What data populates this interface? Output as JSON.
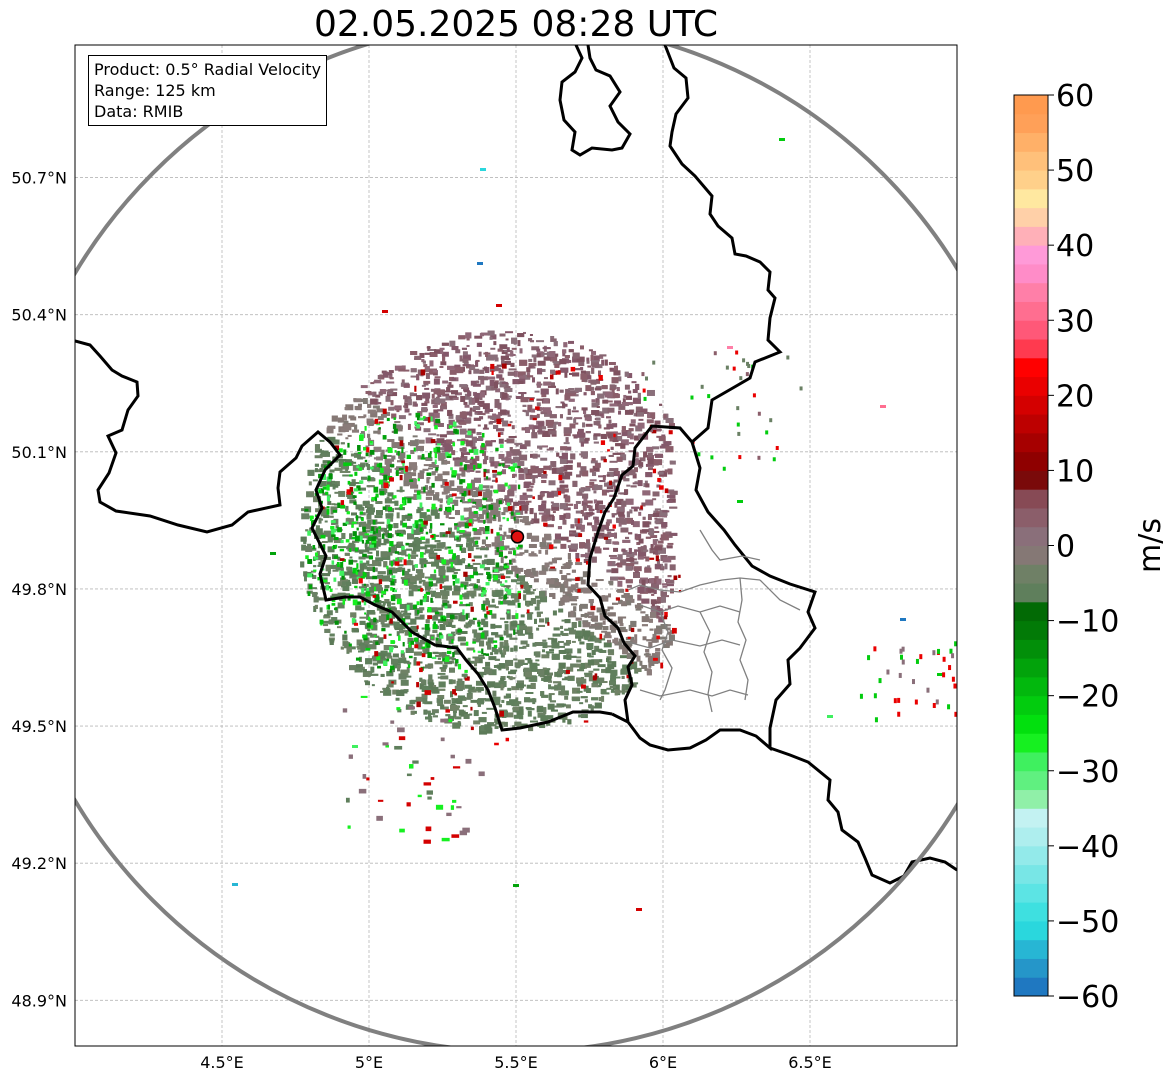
{
  "title": "02.05.2025 08:28 UTC",
  "info_box": {
    "product": "Product: 0.5° Radial Velocity",
    "range": "Range: 125 km",
    "data": "Data: RMIB"
  },
  "map": {
    "lon_range": [
      4.0,
      7.0
    ],
    "lat_range": [
      48.8,
      50.99
    ],
    "lon_ticks": [
      4.5,
      5.0,
      5.5,
      6.0,
      6.5
    ],
    "lon_tick_labels": [
      "4.5°E",
      "5°E",
      "5.5°E",
      "6°E",
      "6.5°E"
    ],
    "lat_ticks": [
      50.7,
      50.4,
      50.1,
      49.8,
      49.5,
      49.2,
      48.9
    ],
    "lat_tick_labels": [
      "50.7°N",
      "50.4°N",
      "50.1°N",
      "49.8°N",
      "49.5°N",
      "49.2°N",
      "48.9°N"
    ],
    "radar_site": {
      "lon": 5.505,
      "lat": 49.914
    },
    "range_ring_color": "#808080",
    "grid": "on, dashed light gray"
  },
  "colorbar": {
    "unit_label": "m/s",
    "range": [
      -60,
      60
    ],
    "ticks": [
      60,
      50,
      40,
      30,
      20,
      10,
      0,
      -10,
      -20,
      -30,
      -40,
      -50,
      -60
    ],
    "tick_labels": [
      "60",
      "50",
      "40",
      "30",
      "20",
      "10",
      "0",
      "−10",
      "−20",
      "−30",
      "−40",
      "−50",
      "−60"
    ],
    "colors_bottom_to_top": [
      "#1f78c1",
      "#2596c9",
      "#27b6d4",
      "#2ad7dd",
      "#3ee0e0",
      "#5ce4e4",
      "#78e6e6",
      "#93eaea",
      "#aeeeee",
      "#c3f2f2",
      "#90f0a8",
      "#60f080",
      "#3ff05f",
      "#16f020",
      "#02e00e",
      "#02cc0e",
      "#02b80d",
      "#02a30b",
      "#028f09",
      "#027a07",
      "#026a05",
      "#5f7f5c",
      "#6f8066",
      "#857875",
      "#8a6f7a",
      "#8b5e6a",
      "#874a55",
      "#7a0a0a",
      "#8f0000",
      "#a60000",
      "#bd0000",
      "#d40000",
      "#ea0000",
      "#ff0000",
      "#ff3a4f",
      "#ff5878",
      "#ff6e90",
      "#ff7fa8",
      "#ff8cc8",
      "#ff9ad8",
      "#ffb0b8",
      "#ffd0a8",
      "#ffe8a0",
      "#ffd08a",
      "#ffc07a",
      "#ffb068",
      "#ffa058",
      "#ff9a4f"
    ]
  },
  "chart_data": {
    "type": "heatmap",
    "variable": "0.5° Radial Velocity",
    "units": "m/s",
    "range_km": 125
  }
}
